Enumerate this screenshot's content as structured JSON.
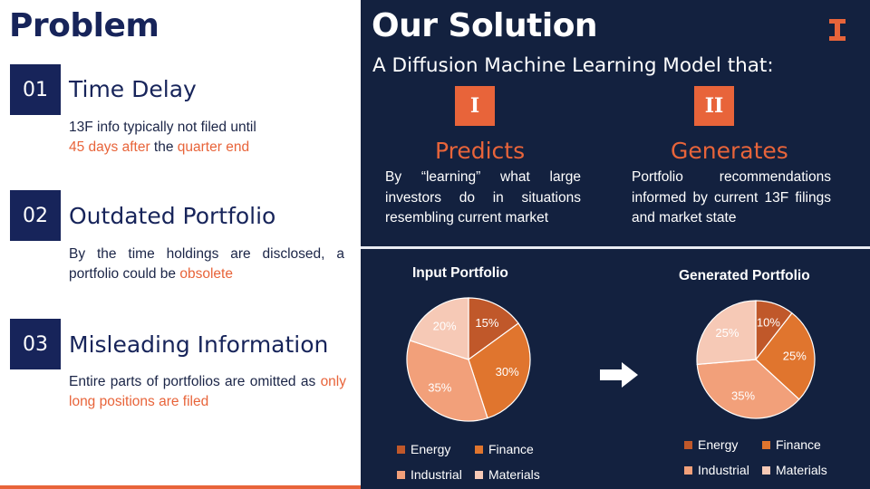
{
  "problem": {
    "title": "Problem",
    "items": [
      {
        "num": "01",
        "title": "Time Delay",
        "text_parts": [
          "13F info typically not filed until",
          "45 days after",
          " the ",
          "quarter end"
        ]
      },
      {
        "num": "02",
        "title": "Outdated Portfolio",
        "text_parts": [
          "By the time holdings are disclosed, a portfolio could be ",
          "obsolete"
        ]
      },
      {
        "num": "03",
        "title": "Misleading Information",
        "text_parts": [
          "Entire parts of portfolios are omitted as ",
          "only long positions are filed"
        ]
      }
    ]
  },
  "solution": {
    "title": "Our Solution",
    "logo_icon": "block-i-icon",
    "subtitle": "A Diffusion Machine Learning Model that:",
    "cards": [
      {
        "roman": "I",
        "head": "Predicts",
        "text": "By “learning” what large investors do in situations resembling current market"
      },
      {
        "roman": "II",
        "head": "Generates",
        "text": "Portfolio recommendations informed by current 13F filings and market state"
      }
    ]
  },
  "arrow_icon": "right-arrow-icon",
  "colors": {
    "navy": "#17245a",
    "panel": "#13213f",
    "accent": "#e8643a",
    "energy": "#c0582a",
    "finance": "#e0752e",
    "industrial": "#f2a07a",
    "materials": "#f6c9b6"
  },
  "chart_data": [
    {
      "type": "pie",
      "title": "Input Portfolio",
      "categories": [
        "Energy",
        "Finance",
        "Industrial",
        "Materials"
      ],
      "values": [
        15,
        30,
        35,
        20
      ],
      "labels": [
        "15%",
        "30%",
        "35%",
        "20%"
      ],
      "legend": "bottom"
    },
    {
      "type": "pie",
      "title": "Generated Portfolio",
      "categories": [
        "Energy",
        "Finance",
        "Industrial",
        "Materials"
      ],
      "values": [
        10,
        25,
        35,
        25
      ],
      "labels": [
        "10%",
        "25%",
        "35%",
        "25%"
      ],
      "legend": "bottom"
    }
  ]
}
